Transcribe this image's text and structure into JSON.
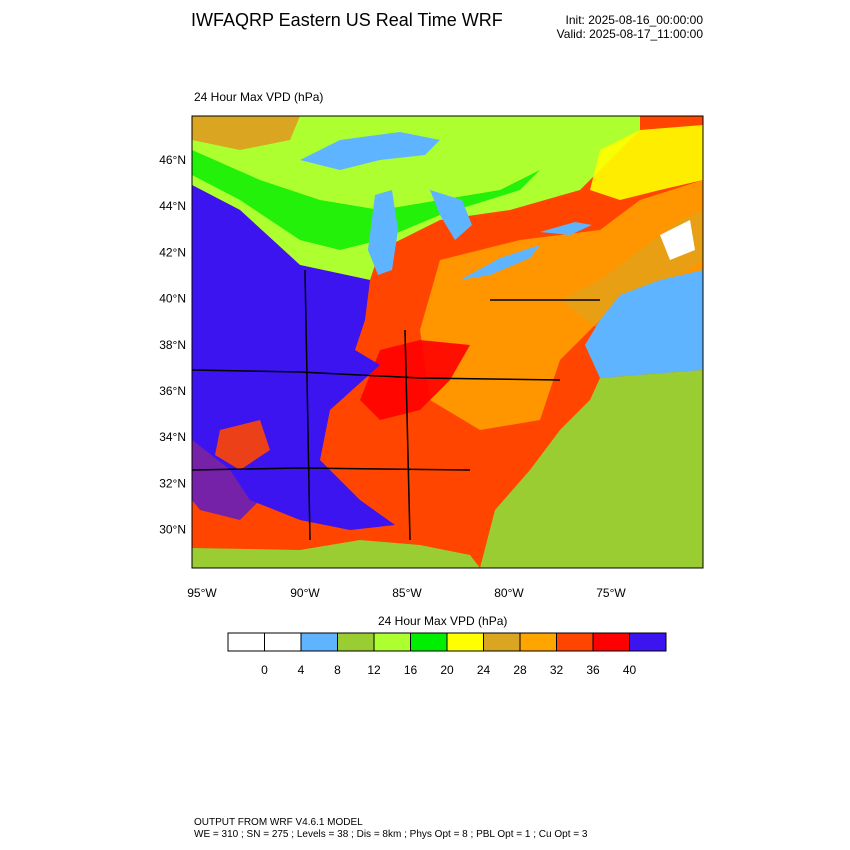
{
  "header": {
    "title": "IWFAQRP Eastern US Real Time WRF",
    "init": "Init: 2025-08-16_00:00:00",
    "valid": "Valid: 2025-08-17_11:00:00"
  },
  "map": {
    "field_label": "24 Hour Max VPD   (hPa)",
    "lat_labels": [
      "46°N",
      "44°N",
      "42°N",
      "40°N",
      "38°N",
      "36°N",
      "34°N",
      "32°N",
      "30°N"
    ],
    "lon_labels": [
      "95°W",
      "90°W",
      "85°W",
      "80°W",
      "75°W"
    ]
  },
  "colorbar": {
    "title": "24 Hour Max VPD  (hPa)",
    "colors": [
      "#ffffff",
      "#ffffff",
      "#5fb4ff",
      "#9acd32",
      "#adff2f",
      "#00ee00",
      "#ffff00",
      "#daa520",
      "#ffa500",
      "#ff4500",
      "#ff0000",
      "#3c14f0"
    ],
    "ticks": [
      0,
      4,
      8,
      12,
      16,
      20,
      24,
      28,
      32,
      36,
      40
    ]
  },
  "footer": {
    "line1": "OUTPUT FROM WRF V4.6.1 MODEL",
    "line2": "WE = 310 ; SN = 275 ; Levels = 38 ; Dis = 8km ; Phys Opt = 8 ; PBL Opt = 1 ; Cu Opt = 3"
  }
}
